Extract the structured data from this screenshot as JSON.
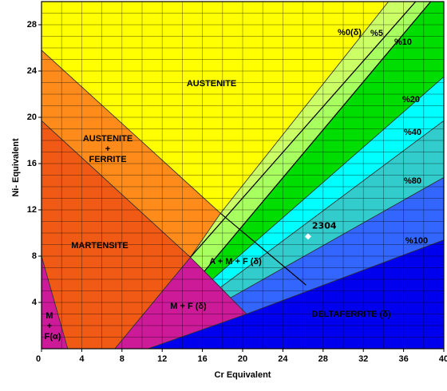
{
  "chart_data": {
    "type": "phase",
    "xlabel": "Cr Equivalent",
    "ylabel": "Ni- Equivalent",
    "xlim": [
      0,
      40
    ],
    "ylim": [
      0,
      30
    ],
    "xticks": [
      0,
      4,
      8,
      12,
      16,
      20,
      24,
      28,
      32,
      36,
      40
    ],
    "yticks": [
      4,
      8,
      12,
      16,
      20,
      24,
      28
    ],
    "xgrid": [
      0,
      2,
      4,
      6,
      8,
      10,
      12,
      14,
      16,
      18,
      20,
      22,
      24,
      26,
      28,
      30,
      32,
      34,
      36,
      38,
      40
    ],
    "ygrid": [
      0,
      1,
      2,
      3,
      4,
      5,
      6,
      7,
      8,
      9,
      10,
      11,
      12,
      13,
      14,
      15,
      16,
      17,
      18,
      19,
      20,
      21,
      22,
      23,
      24,
      25,
      26,
      27,
      28,
      29,
      30
    ],
    "regions": [
      {
        "label": [
          "AUSTENITE"
        ],
        "color": "#ffff00",
        "points": [
          [
            0,
            30
          ],
          [
            34.5,
            30
          ],
          [
            17.8,
            11.7
          ],
          [
            0,
            25.8
          ]
        ]
      },
      {
        "label": [
          "AUSTENITE",
          "+",
          "FERRITE"
        ],
        "color": "#ff8c1a",
        "points": [
          [
            0,
            25.8
          ],
          [
            17.8,
            11.7
          ],
          [
            14.8,
            7.9
          ],
          [
            0,
            19.7
          ]
        ]
      },
      {
        "label": [
          "MARTENSITE"
        ],
        "color": "#f05a14",
        "points": [
          [
            0,
            19.7
          ],
          [
            14.8,
            7.9
          ],
          [
            7.3,
            0
          ],
          [
            2.6,
            0
          ],
          [
            0,
            8
          ]
        ]
      },
      {
        "label": [
          "M",
          "+",
          "F(α)"
        ],
        "color": "#cc1a99",
        "points": [
          [
            0,
            8
          ],
          [
            2.6,
            0
          ],
          [
            0,
            0
          ]
        ]
      },
      {
        "label": [
          "M + F  (δ)"
        ],
        "color": "#cc1a99",
        "points": [
          [
            14.8,
            7.9
          ],
          [
            20.4,
            3.0
          ],
          [
            10.6,
            0
          ],
          [
            7.3,
            0
          ]
        ]
      },
      {
        "label": [
          "A + M + F (δ)"
        ],
        "color": "#ccff66",
        "points": [
          [
            14.8,
            7.9
          ],
          [
            17.8,
            11.7
          ],
          [
            34.5,
            30
          ],
          [
            37.2,
            30
          ]
        ]
      },
      {
        "color": "#a8ff60",
        "points": [
          [
            14.8,
            7.9
          ],
          [
            37.2,
            30
          ],
          [
            38.7,
            30
          ],
          [
            16.2,
            6.7
          ]
        ]
      },
      {
        "color": "#00dd00",
        "points": [
          [
            16.2,
            6.7
          ],
          [
            38.7,
            30
          ],
          [
            40,
            30
          ],
          [
            40,
            23.5
          ],
          [
            17.0,
            6.0
          ]
        ]
      },
      {
        "color": "#00ffff",
        "points": [
          [
            17.0,
            6.0
          ],
          [
            40,
            23.5
          ],
          [
            40,
            19.7
          ],
          [
            17.8,
            5.3
          ]
        ]
      },
      {
        "color": "#33cccc",
        "points": [
          [
            17.8,
            5.3
          ],
          [
            40,
            19.7
          ],
          [
            40,
            14.8
          ],
          [
            18.8,
            4.4
          ]
        ]
      },
      {
        "color": "#3366ff",
        "points": [
          [
            18.8,
            4.4
          ],
          [
            40,
            14.8
          ],
          [
            40,
            9.4
          ],
          [
            20.4,
            3.0
          ]
        ]
      },
      {
        "label": [
          "DELTAFERRITE (δ)"
        ],
        "color": "#0000ee",
        "points": [
          [
            20.4,
            3.0
          ],
          [
            40,
            9.4
          ],
          [
            40,
            0
          ],
          [
            10.6,
            0
          ]
        ]
      }
    ],
    "lines": [
      [
        [
          17.8,
          11.7
        ],
        [
          26.3,
          5.5
        ]
      ],
      [
        [
          14.8,
          7.9
        ],
        [
          37.2,
          30
        ]
      ],
      [
        [
          16.2,
          6.7
        ],
        [
          38.7,
          30
        ]
      ]
    ],
    "iso_labels": [
      "%0(δ)",
      "%5",
      "%10",
      "%20",
      "%40",
      "%80",
      "%100"
    ],
    "points": [
      {
        "name": "2304",
        "x": 26.5,
        "y": 9.7
      }
    ]
  }
}
